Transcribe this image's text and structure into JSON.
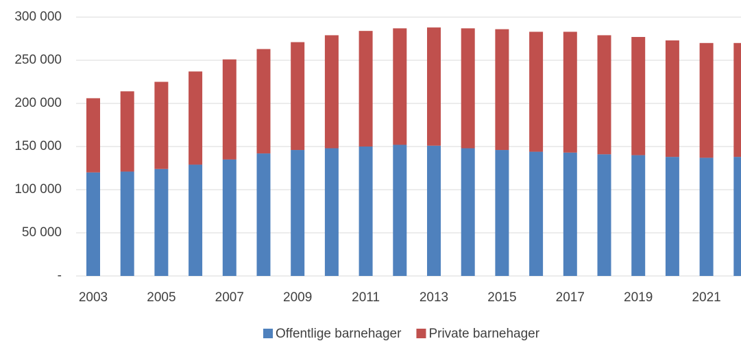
{
  "chart_data": {
    "type": "bar",
    "stacked": true,
    "categories": [
      "2003",
      null,
      "2005",
      null,
      "2007",
      null,
      "2009",
      null,
      "2011",
      null,
      "2013",
      null,
      "2015",
      null,
      "2017",
      null,
      "2019",
      null,
      "2021",
      null
    ],
    "series": [
      {
        "name": "Offentlige barnehager",
        "color": "#4f81bd",
        "values": [
          120000,
          121000,
          124000,
          129000,
          135000,
          142000,
          146000,
          148000,
          150000,
          152000,
          151000,
          148000,
          146000,
          144000,
          143000,
          141000,
          140000,
          138000,
          137000,
          138000
        ]
      },
      {
        "name": "Private barnehager",
        "color": "#c0504d",
        "values": [
          86000,
          93000,
          101000,
          108000,
          116000,
          121000,
          125000,
          131000,
          134000,
          135000,
          137000,
          139000,
          140000,
          139000,
          140000,
          138000,
          137000,
          135000,
          133000,
          132000
        ]
      }
    ],
    "ylim": [
      0,
      300000
    ],
    "yticks": [
      {
        "value": 0,
        "label": "-"
      },
      {
        "value": 50000,
        "label": "50 000"
      },
      {
        "value": 100000,
        "label": "100 000"
      },
      {
        "value": 150000,
        "label": "150 000"
      },
      {
        "value": 200000,
        "label": "200 000"
      },
      {
        "value": 250000,
        "label": "250 000"
      },
      {
        "value": 300000,
        "label": "300 000"
      }
    ],
    "grid": true,
    "legend": "bottom"
  }
}
